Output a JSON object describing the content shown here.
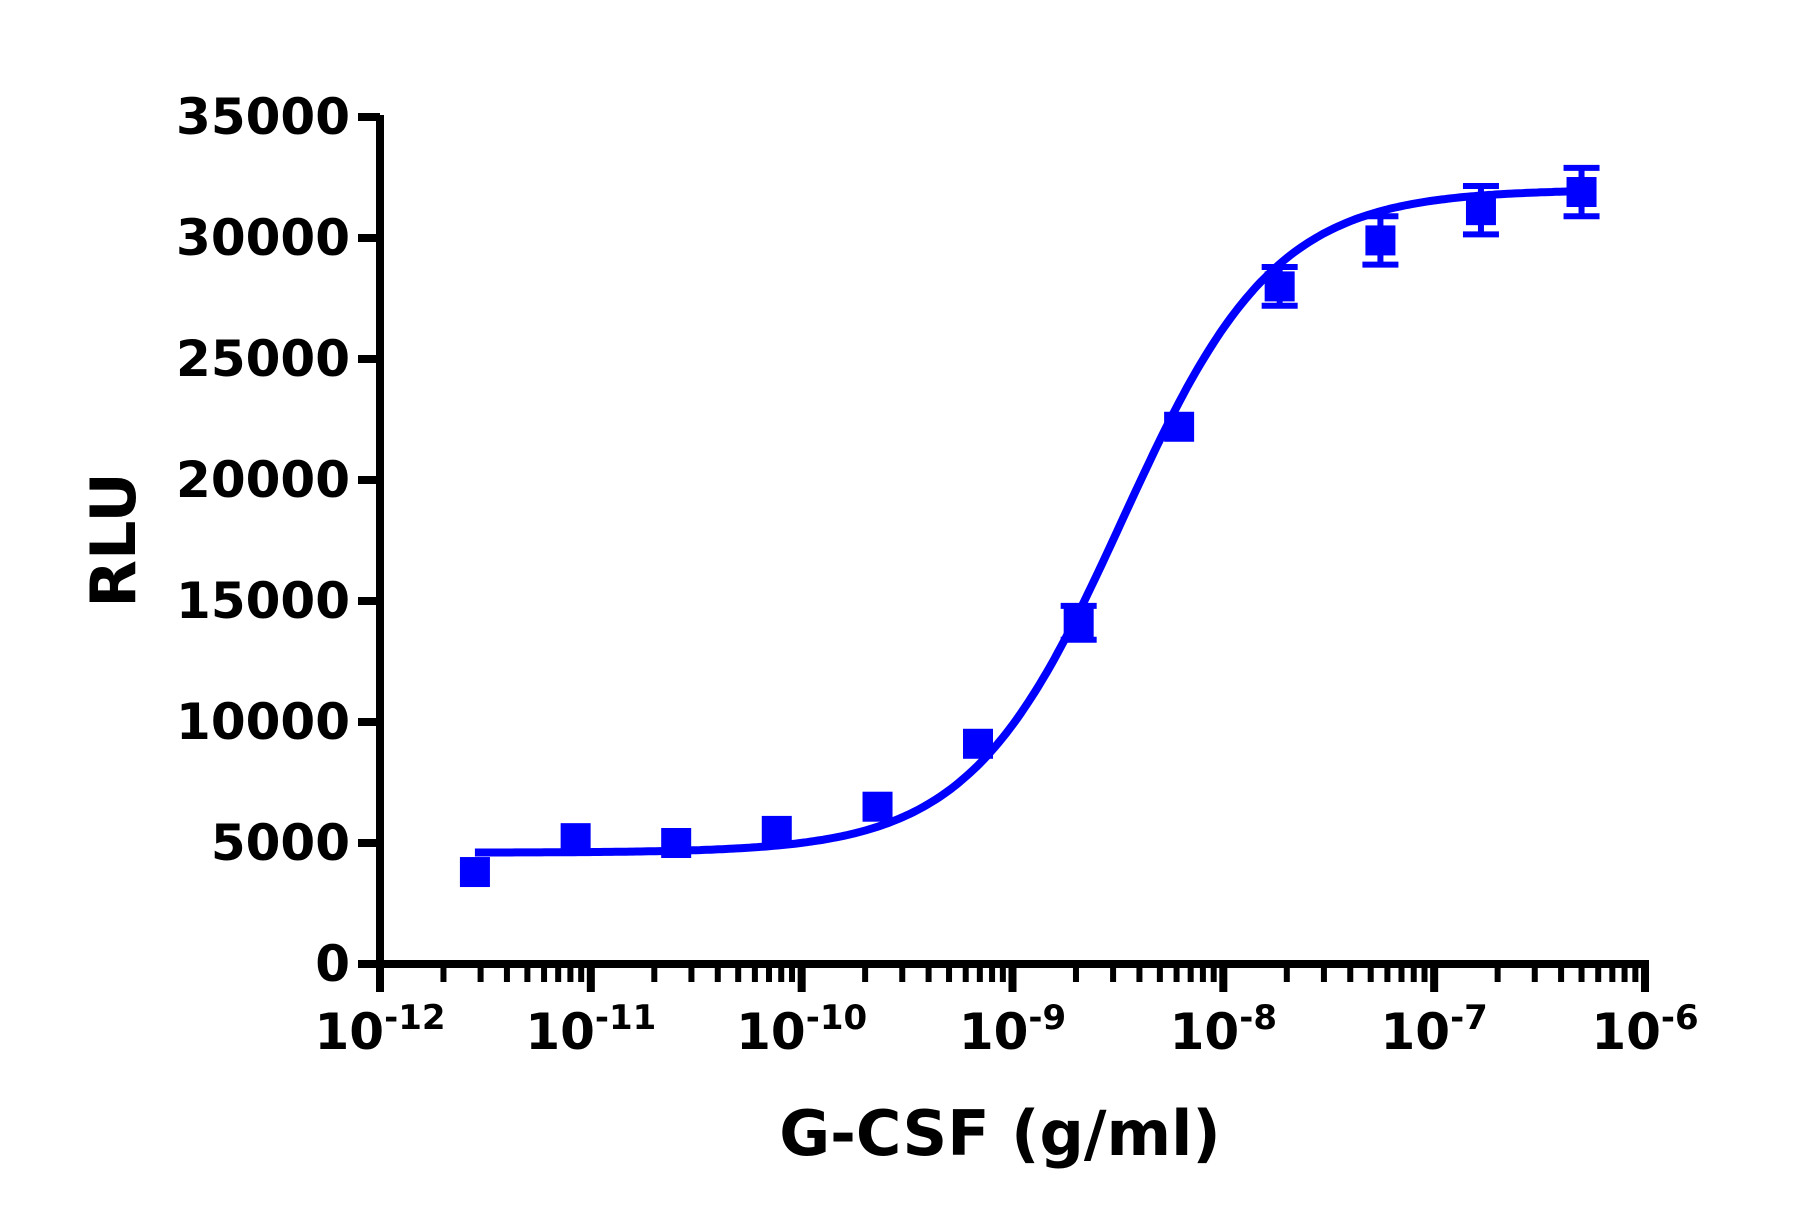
{
  "chart_data": {
    "type": "scatter",
    "title": "",
    "xlabel": "G-CSF (g/ml)",
    "ylabel": "RLU",
    "x_scale": "log",
    "xlim": [
      1e-12,
      1e-06
    ],
    "ylim": [
      0,
      35000
    ],
    "x_tick_labels": [
      {
        "base": "10",
        "exp": "-12"
      },
      {
        "base": "10",
        "exp": "-11"
      },
      {
        "base": "10",
        "exp": "-10"
      },
      {
        "base": "10",
        "exp": "-9"
      },
      {
        "base": "10",
        "exp": "-8"
      },
      {
        "base": "10",
        "exp": "-7"
      },
      {
        "base": "10",
        "exp": "-6"
      }
    ],
    "y_ticks": [
      "0",
      "5000",
      "10000",
      "15000",
      "20000",
      "25000",
      "30000",
      "35000"
    ],
    "grid": false,
    "color": "#0000ff",
    "series": [
      {
        "marker": "square",
        "x": [
          2.82e-12,
          8.47e-12,
          2.54e-11,
          7.62e-11,
          2.29e-10,
          6.86e-10,
          2.06e-09,
          6.17e-09,
          1.85e-08,
          5.56e-08,
          1.667e-07,
          5e-07
        ],
        "y": [
          3800,
          5200,
          5000,
          5500,
          6500,
          9100,
          14100,
          22200,
          28000,
          29900,
          31150,
          31900
        ],
        "error": [
          0,
          0,
          0,
          0,
          0,
          0,
          700,
          0,
          800,
          1000,
          1000,
          1000
        ]
      }
    ],
    "fit": {
      "model": "4PL",
      "bottom": 4600,
      "top": 32000,
      "ec50": 3.3e-09,
      "hill": 1.2
    }
  }
}
